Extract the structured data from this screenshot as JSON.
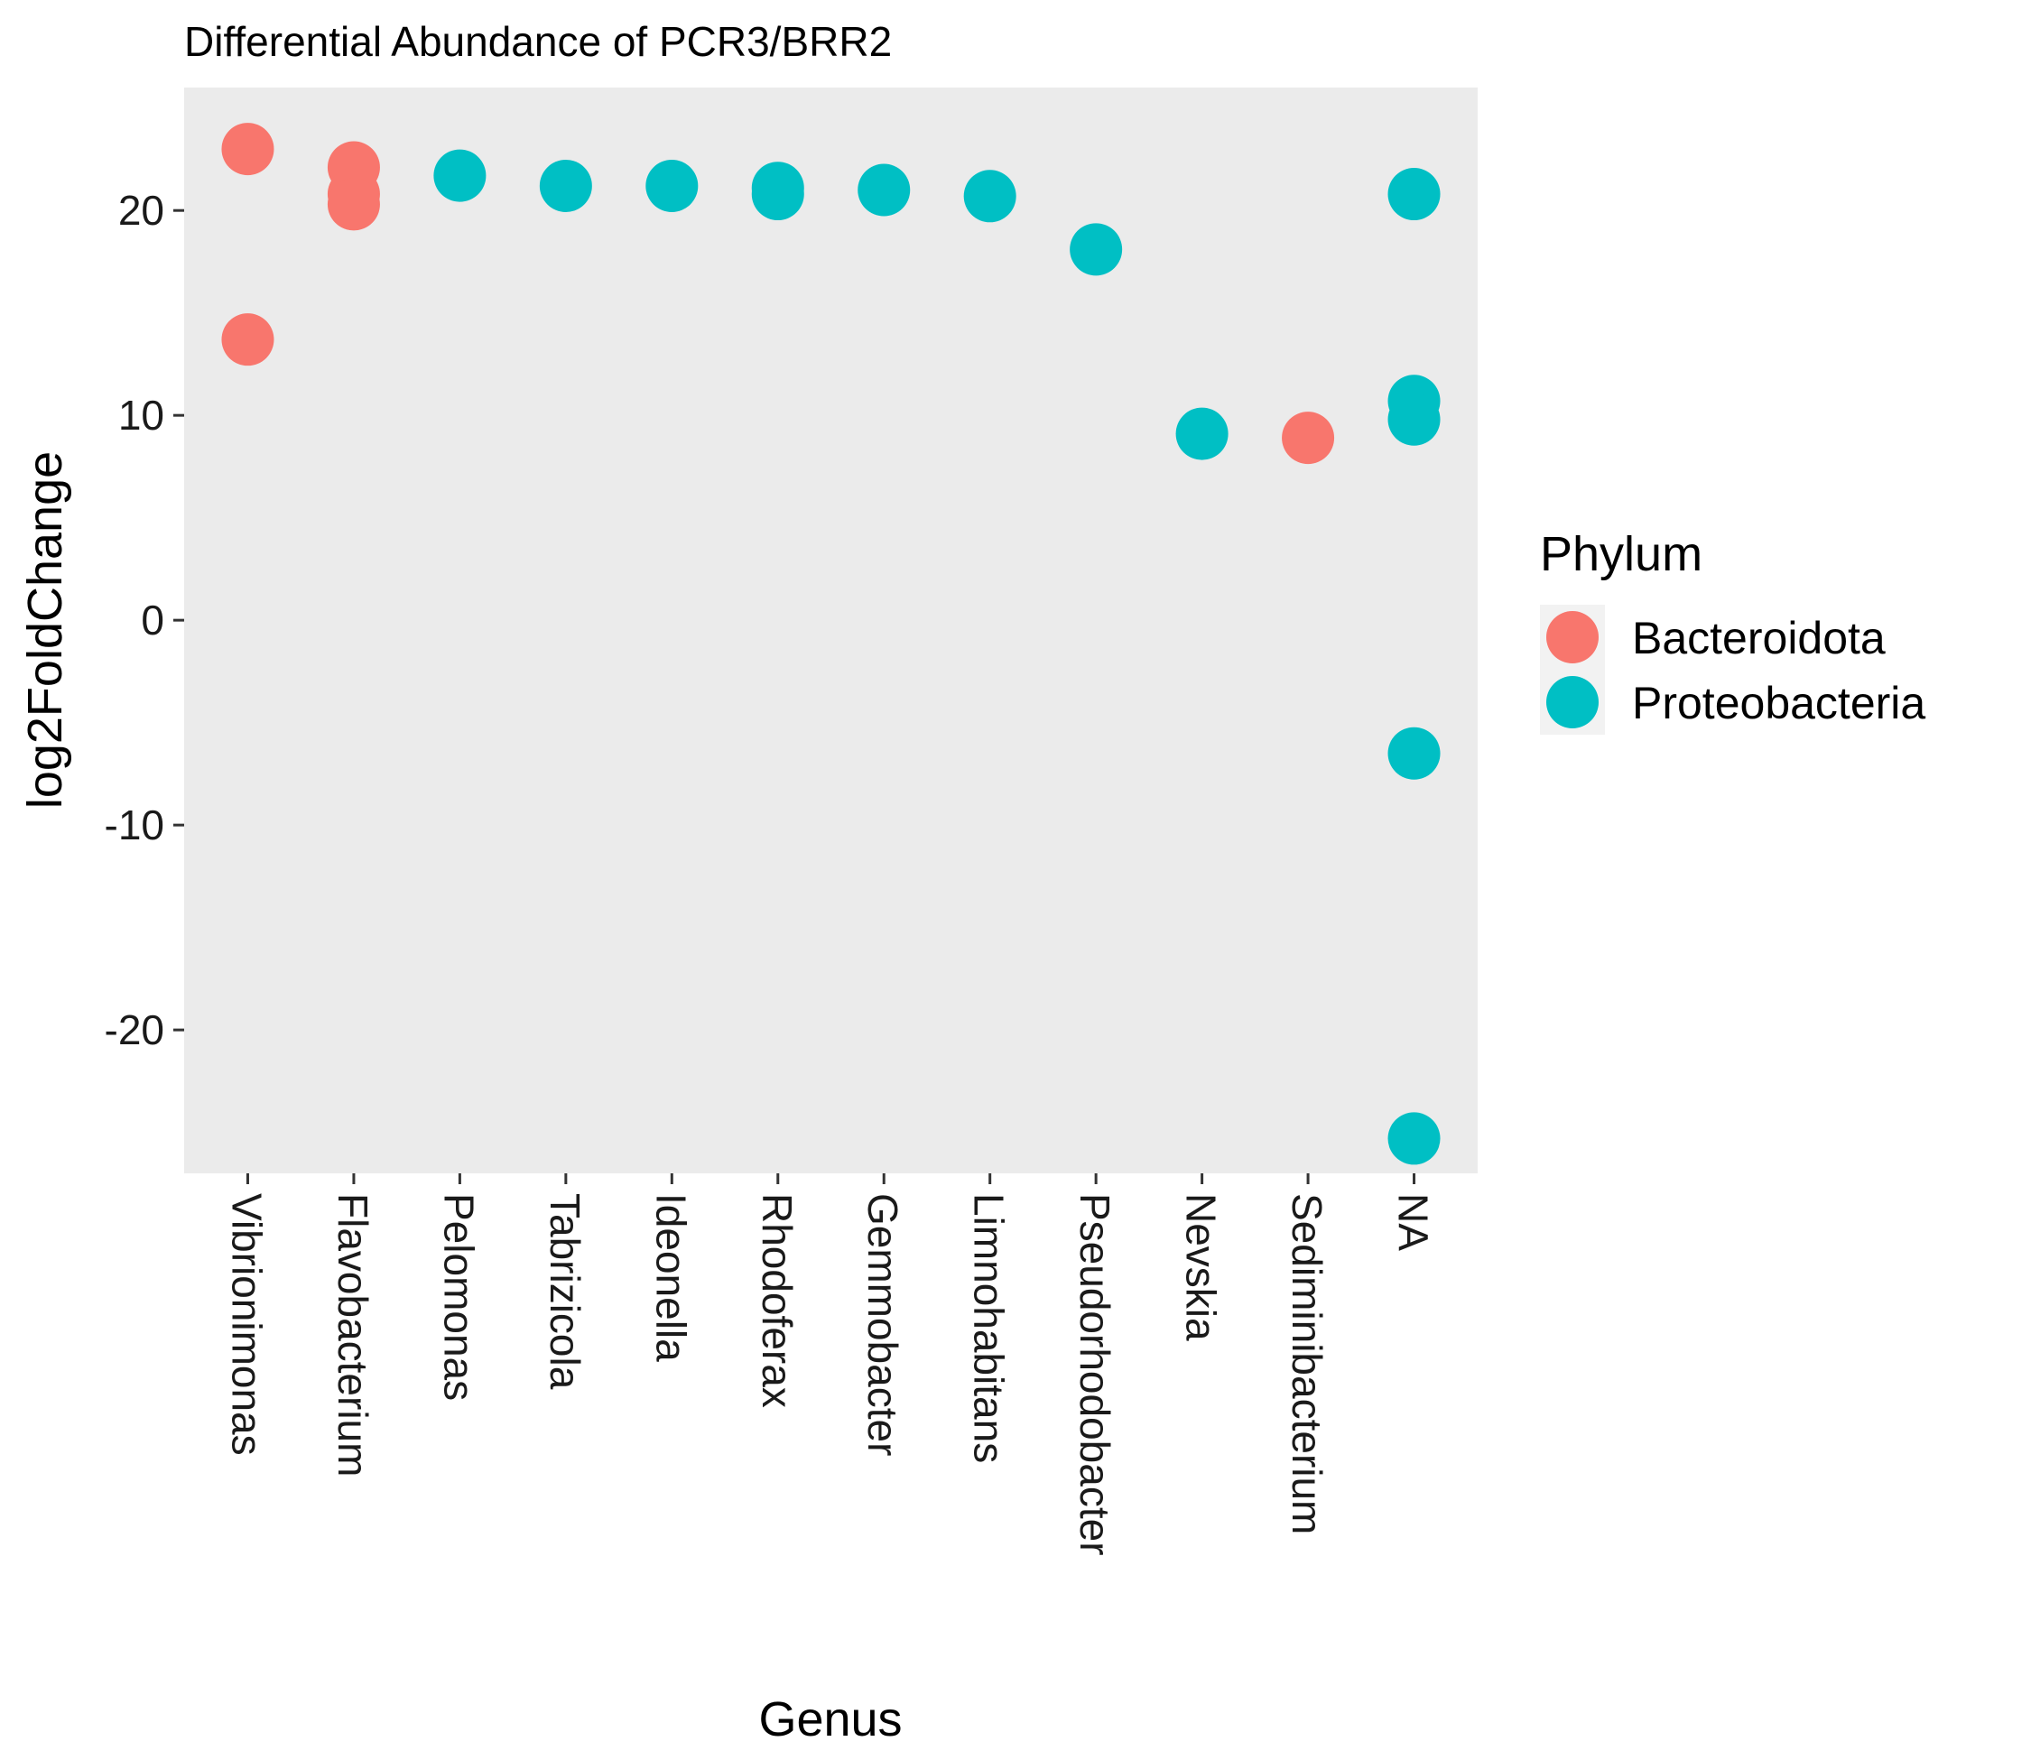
{
  "chart_data": {
    "type": "scatter",
    "title": "Differential Abundance of PCR3/BRR2",
    "xlabel": "Genus",
    "ylabel": "log2FoldChange",
    "ylim": [
      -27,
      26
    ],
    "yticks": [
      -20,
      -10,
      0,
      10,
      20
    ],
    "ytick_labels": [
      "-20",
      "-10",
      "0",
      "10",
      "20"
    ],
    "categories": [
      "Vibrionimonas",
      "Flavobacterium",
      "Pelomonas",
      "Tabrizicola",
      "Ideonella",
      "Rhodoferax",
      "Gemmobacter",
      "Limnohabitans",
      "Pseudorhodobacter",
      "Nevskia",
      "Sediminibacterium",
      "NA"
    ],
    "grid": false,
    "legend": {
      "title": "Phylum",
      "position": "right"
    },
    "series": [
      {
        "name": "Bacteroidota",
        "color": "#F8766D",
        "points": [
          {
            "x": "Vibrionimonas",
            "y": 23.0
          },
          {
            "x": "Vibrionimonas",
            "y": 13.7
          },
          {
            "x": "Flavobacterium",
            "y": 22.1
          },
          {
            "x": "Flavobacterium",
            "y": 20.8
          },
          {
            "x": "Flavobacterium",
            "y": 20.3
          },
          {
            "x": "Sediminibacterium",
            "y": 8.9
          }
        ]
      },
      {
        "name": "Proteobacteria",
        "color": "#00BFC4",
        "points": [
          {
            "x": "Pelomonas",
            "y": 21.7
          },
          {
            "x": "Tabrizicola",
            "y": 21.2
          },
          {
            "x": "Ideonella",
            "y": 21.2
          },
          {
            "x": "Rhodoferax",
            "y": 21.1
          },
          {
            "x": "Rhodoferax",
            "y": 20.8
          },
          {
            "x": "Gemmobacter",
            "y": 21.0
          },
          {
            "x": "Limnohabitans",
            "y": 20.7
          },
          {
            "x": "Pseudorhodobacter",
            "y": 18.1
          },
          {
            "x": "Nevskia",
            "y": 9.1
          },
          {
            "x": "NA",
            "y": 20.8
          },
          {
            "x": "NA",
            "y": 10.7
          },
          {
            "x": "NA",
            "y": 9.8
          },
          {
            "x": "NA",
            "y": -6.5
          },
          {
            "x": "NA",
            "y": -25.3
          }
        ]
      }
    ]
  }
}
